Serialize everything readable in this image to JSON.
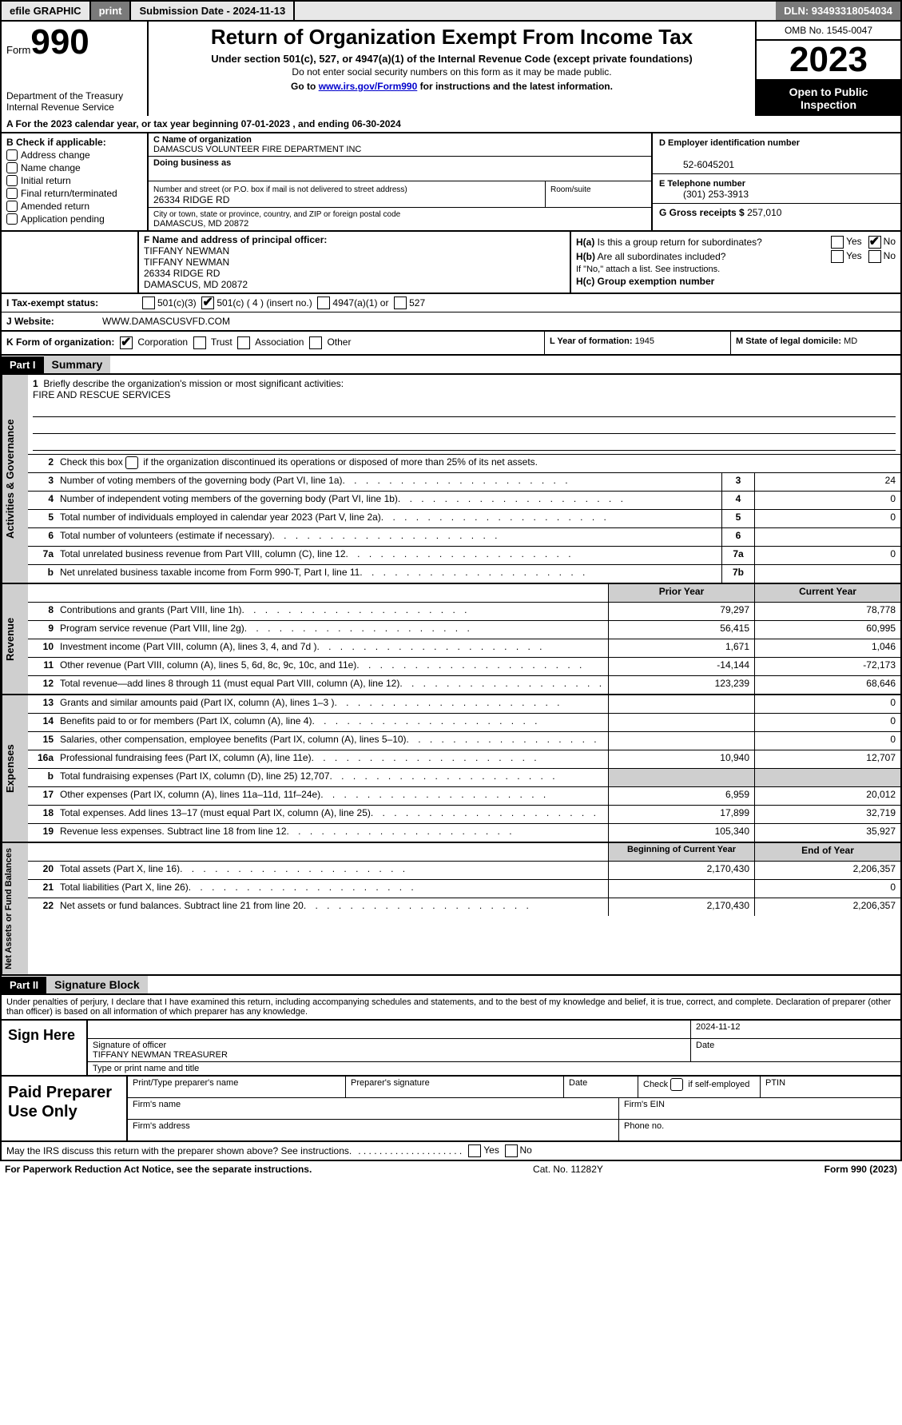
{
  "topbar": {
    "efile": "efile GRAPHIC",
    "print": "print",
    "submission": "Submission Date - 2024-11-13",
    "dln": "DLN: 93493318054034"
  },
  "header": {
    "form_label": "Form",
    "form_number": "990",
    "dept": "Department of the Treasury\nInternal Revenue Service",
    "title": "Return of Organization Exempt From Income Tax",
    "subtitle": "Under section 501(c), 527, or 4947(a)(1) of the Internal Revenue Code (except private foundations)",
    "note": "Do not enter social security numbers on this form as it may be made public.",
    "goto_prefix": "Go to ",
    "goto_link": "www.irs.gov/Form990",
    "goto_suffix": " for instructions and the latest information.",
    "omb": "OMB No. 1545-0047",
    "year": "2023",
    "open": "Open to Public Inspection"
  },
  "lineA": "A   For the 2023 calendar year, or tax year beginning 07-01-2023    , and ending 06-30-2024",
  "colB": {
    "header": "B Check if applicable:",
    "items": [
      "Address change",
      "Name change",
      "Initial return",
      "Final return/terminated",
      "Amended return",
      "Application pending"
    ]
  },
  "colC": {
    "name_lbl": "C Name of organization",
    "name": "DAMASCUS VOLUNTEER FIRE DEPARTMENT INC",
    "dba_lbl": "Doing business as",
    "addr_lbl": "Number and street (or P.O. box if mail is not delivered to street address)",
    "room_lbl": "Room/suite",
    "addr": "26334 RIDGE RD",
    "city_lbl": "City or town, state or province, country, and ZIP or foreign postal code",
    "city": "DAMASCUS, MD  20872"
  },
  "colD": {
    "ein_lbl": "D Employer identification number",
    "ein": "52-6045201",
    "phone_lbl": "E Telephone number",
    "phone": "(301) 253-3913",
    "gross_lbl": "G Gross receipts $",
    "gross": "257,010"
  },
  "officer": {
    "lbl": "F  Name and address of principal officer:",
    "lines": "TIFFANY NEWMAN\nTIFFANY NEWMAN\n26334 RIDGE RD\nDAMASCUS, MD  20872"
  },
  "h": {
    "a": "H(a)  Is this a group return for subordinates?",
    "b": "H(b)  Are all subordinates included?",
    "note": "If \"No,\" attach a list. See instructions.",
    "c": "H(c)  Group exemption number",
    "yes": "Yes",
    "no": "No"
  },
  "lineI": {
    "lbl": "I   Tax-exempt status:",
    "o1": "501(c)(3)",
    "o2": "501(c) ( 4 ) (insert no.)",
    "o3": "4947(a)(1) or",
    "o4": "527"
  },
  "lineJ": {
    "lbl": "J   Website:",
    "val": "WWW.DAMASCUSVFD.COM"
  },
  "lineK": {
    "lbl": "K Form of organization:",
    "opts": [
      "Corporation",
      "Trust",
      "Association",
      "Other"
    ],
    "year_lbl": "L Year of formation: ",
    "year": "1945",
    "state_lbl": "M State of legal domicile: ",
    "state": "MD"
  },
  "part1": {
    "hdr": "Part I",
    "title": "Summary"
  },
  "summary": {
    "side1": "Activities & Governance",
    "side2": "Revenue",
    "side3": "Expenses",
    "side4": "Net Assets or Fund Balances",
    "l1_lbl": "1",
    "l1": "Briefly describe the organization's mission or most significant activities:",
    "l1_val": "FIRE AND RESCUE SERVICES",
    "l2_lbl": "2",
    "l2": "Check this box      if the organization discontinued its operations or disposed of more than 25% of its net assets.",
    "rows_gov": [
      {
        "n": "3",
        "d": "Number of voting members of the governing body (Part VI, line 1a)",
        "box": "3",
        "v": "24"
      },
      {
        "n": "4",
        "d": "Number of independent voting members of the governing body (Part VI, line 1b)",
        "box": "4",
        "v": "0"
      },
      {
        "n": "5",
        "d": "Total number of individuals employed in calendar year 2023 (Part V, line 2a)",
        "box": "5",
        "v": "0"
      },
      {
        "n": "6",
        "d": "Total number of volunteers (estimate if necessary)",
        "box": "6",
        "v": ""
      },
      {
        "n": "7a",
        "d": "Total unrelated business revenue from Part VIII, column (C), line 12",
        "box": "7a",
        "v": "0"
      },
      {
        "n": "b",
        "d": "Net unrelated business taxable income from Form 990-T, Part I, line 11",
        "box": "7b",
        "v": ""
      }
    ],
    "col_hdr_prior": "Prior Year",
    "col_hdr_curr": "Current Year",
    "rows_rev": [
      {
        "n": "8",
        "d": "Contributions and grants (Part VIII, line 1h)",
        "p": "79,297",
        "c": "78,778"
      },
      {
        "n": "9",
        "d": "Program service revenue (Part VIII, line 2g)",
        "p": "56,415",
        "c": "60,995"
      },
      {
        "n": "10",
        "d": "Investment income (Part VIII, column (A), lines 3, 4, and 7d )",
        "p": "1,671",
        "c": "1,046"
      },
      {
        "n": "11",
        "d": "Other revenue (Part VIII, column (A), lines 5, 6d, 8c, 9c, 10c, and 11e)",
        "p": "-14,144",
        "c": "-72,173"
      },
      {
        "n": "12",
        "d": "Total revenue—add lines 8 through 11 (must equal Part VIII, column (A), line 12)",
        "p": "123,239",
        "c": "68,646"
      }
    ],
    "rows_exp": [
      {
        "n": "13",
        "d": "Grants and similar amounts paid (Part IX, column (A), lines 1–3 )",
        "p": "",
        "c": "0"
      },
      {
        "n": "14",
        "d": "Benefits paid to or for members (Part IX, column (A), line 4)",
        "p": "",
        "c": "0"
      },
      {
        "n": "15",
        "d": "Salaries, other compensation, employee benefits (Part IX, column (A), lines 5–10)",
        "p": "",
        "c": "0"
      },
      {
        "n": "16a",
        "d": "Professional fundraising fees (Part IX, column (A), line 11e)",
        "p": "10,940",
        "c": "12,707"
      },
      {
        "n": "b",
        "d": "Total fundraising expenses (Part IX, column (D), line 25) 12,707",
        "p": "grey",
        "c": "grey"
      },
      {
        "n": "17",
        "d": "Other expenses (Part IX, column (A), lines 11a–11d, 11f–24e)",
        "p": "6,959",
        "c": "20,012"
      },
      {
        "n": "18",
        "d": "Total expenses. Add lines 13–17 (must equal Part IX, column (A), line 25)",
        "p": "17,899",
        "c": "32,719"
      },
      {
        "n": "19",
        "d": "Revenue less expenses. Subtract line 18 from line 12",
        "p": "105,340",
        "c": "35,927"
      }
    ],
    "col_hdr_beg": "Beginning of Current Year",
    "col_hdr_end": "End of Year",
    "rows_net": [
      {
        "n": "20",
        "d": "Total assets (Part X, line 16)",
        "p": "2,170,430",
        "c": "2,206,357"
      },
      {
        "n": "21",
        "d": "Total liabilities (Part X, line 26)",
        "p": "",
        "c": "0"
      },
      {
        "n": "22",
        "d": "Net assets or fund balances. Subtract line 21 from line 20",
        "p": "2,170,430",
        "c": "2,206,357"
      }
    ]
  },
  "part2": {
    "hdr": "Part II",
    "title": "Signature Block"
  },
  "sig": {
    "perjury": "Under penalties of perjury, I declare that I have examined this return, including accompanying schedules and statements, and to the best of my knowledge and belief, it is true, correct, and complete. Declaration of preparer (other than officer) is based on all information of which preparer has any knowledge.",
    "sign_here": "Sign Here",
    "date": "2024-11-12",
    "sig_lbl": "Signature of officer",
    "name": "TIFFANY NEWMAN  TREASURER",
    "type_lbl": "Type or print name and title",
    "date_lbl": "Date"
  },
  "prep": {
    "title": "Paid Preparer Use Only",
    "h1": "Print/Type preparer's name",
    "h2": "Preparer's signature",
    "h3": "Date",
    "h4": "Check        if self-employed",
    "h5": "PTIN",
    "firm_name": "Firm's name",
    "firm_ein": "Firm's EIN",
    "firm_addr": "Firm's address",
    "phone": "Phone no."
  },
  "may": {
    "q": "May the IRS discuss this return with the preparer shown above? See instructions."
  },
  "footer": {
    "left": "For Paperwork Reduction Act Notice, see the separate instructions.",
    "mid": "Cat. No. 11282Y",
    "right": "Form 990 (2023)"
  },
  "dots": ".  .  .  .  .  .  .  .  .  .  .  .  .  .  .  .  .  .  .  ."
}
